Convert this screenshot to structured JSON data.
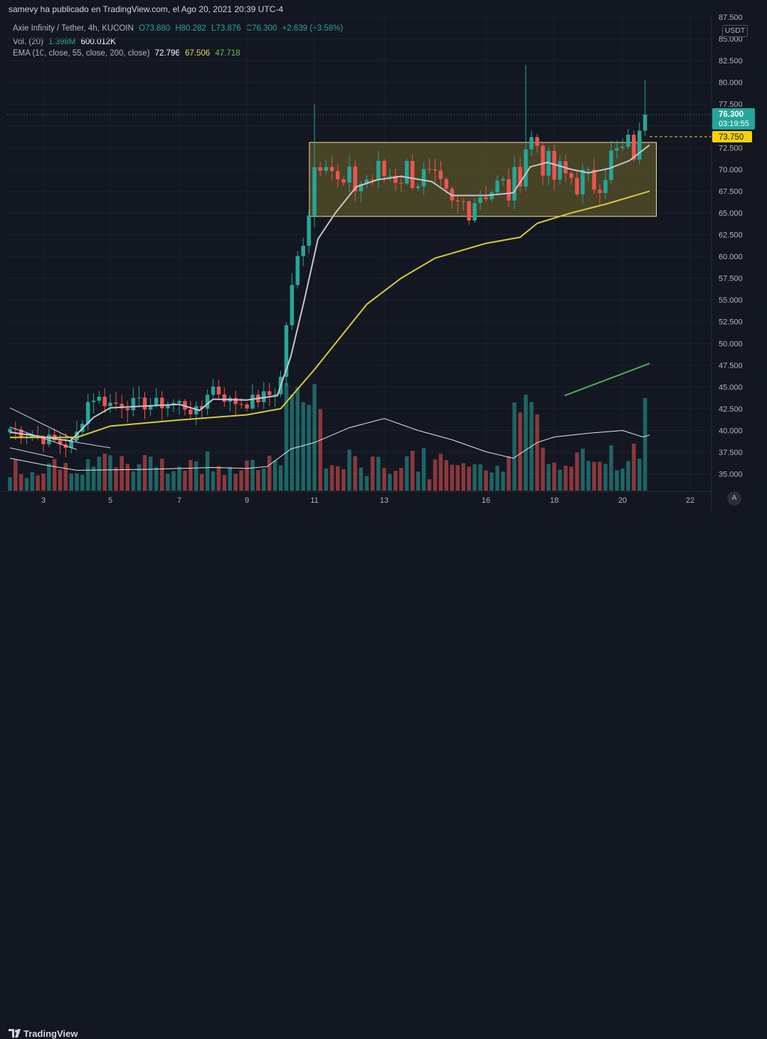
{
  "header": {
    "published_by": "samevy ha publicado en TradingView.com, el Ago 20, 2021 20:39 UTC-4"
  },
  "legend": {
    "symbol": "Axie Infinity / Tether, 4h, KUCOIN",
    "open": "O73.880",
    "high": "H80.282",
    "low": "L73.876",
    "close": "C76.300",
    "change": "+2.639 (+3.58%)",
    "vol_label": "Vol. (20)",
    "vol_value": "1.398M",
    "vol_ma": "600.012K",
    "ema_label": "EMA (10, close, 55, close, 200, close)",
    "ema10": "72.796",
    "ema55": "67.506",
    "ema200": "47.718"
  },
  "currency": "USDT",
  "footer": {
    "logo": "TradingView",
    "auto": "A"
  },
  "colors": {
    "up": "#26a69a",
    "down": "#ef5350",
    "ema10": "#c7c7cc",
    "ema55": "#d8c93a",
    "ema200": "#4caf50",
    "box": "#5a5428"
  },
  "chart_data": {
    "type": "candlestick",
    "title": "Axie Infinity / Tether, 4h, KUCOIN",
    "ylim": [
      33.0,
      87.5
    ],
    "y_ticks": [
      "35.000",
      "37.500",
      "40.000",
      "42.500",
      "45.000",
      "47.500",
      "50.000",
      "52.500",
      "55.000",
      "57.500",
      "60.000",
      "62.500",
      "65.000",
      "67.500",
      "70.000",
      "72.500",
      "75.000",
      "77.500",
      "80.000",
      "82.500",
      "85.000",
      "87.500"
    ],
    "x_ticks": [
      {
        "label": "3",
        "day": 3
      },
      {
        "label": "5",
        "day": 5
      },
      {
        "label": "7",
        "day": 7
      },
      {
        "label": "9",
        "day": 9
      },
      {
        "label": "11",
        "day": 11
      },
      {
        "label": "13",
        "day": 13
      },
      {
        "label": "16",
        "day": 16
      },
      {
        "label": "18",
        "day": 18
      },
      {
        "label": "20",
        "day": 20
      },
      {
        "label": "22",
        "day": 22
      }
    ],
    "last_price": {
      "value": 76.3,
      "label": "76.300",
      "countdown": "03:19:55"
    },
    "horizontal_line": {
      "value": 73.75,
      "label": "73.750"
    },
    "consolidation_box": {
      "from_day": 10.85,
      "to_day": 21.0,
      "top": 73.1,
      "bottom": 64.6
    },
    "anchor_points": [
      {
        "day": 2.0,
        "close": 40.2
      },
      {
        "day": 3.8,
        "close": 38.2
      },
      {
        "day": 4.0,
        "close": 39.6
      },
      {
        "day": 4.4,
        "close": 44.0
      },
      {
        "day": 5.0,
        "close": 43.1
      },
      {
        "day": 6.0,
        "close": 43.0
      },
      {
        "day": 7.0,
        "close": 43.1
      },
      {
        "day": 7.6,
        "close": 41.8
      },
      {
        "day": 7.9,
        "close": 45.3
      },
      {
        "day": 8.5,
        "close": 43.3
      },
      {
        "day": 9.0,
        "close": 43.2
      },
      {
        "day": 9.8,
        "close": 44.3
      },
      {
        "day": 10.0,
        "close": 46.0
      },
      {
        "day": 10.2,
        "close": 53.5
      },
      {
        "day": 10.5,
        "close": 59.8
      },
      {
        "day": 10.7,
        "close": 62.2
      },
      {
        "day": 10.85,
        "close": 65.5
      },
      {
        "day": 11.0,
        "close": 70.5
      },
      {
        "day": 11.3,
        "close": 73.0
      },
      {
        "day": 11.7,
        "close": 67.5
      },
      {
        "day": 12.3,
        "close": 68.6
      },
      {
        "day": 13.0,
        "close": 69.5
      },
      {
        "day": 13.8,
        "close": 69.8
      },
      {
        "day": 14.4,
        "close": 68.0
      },
      {
        "day": 15.0,
        "close": 65.2
      },
      {
        "day": 15.4,
        "close": 66.2
      },
      {
        "day": 16.0,
        "close": 68.0
      },
      {
        "day": 16.8,
        "close": 67.5
      },
      {
        "day": 17.2,
        "close": 73.5
      },
      {
        "day": 17.5,
        "close": 73.0
      },
      {
        "day": 17.9,
        "close": 69.0
      },
      {
        "day": 18.6,
        "close": 69.2
      },
      {
        "day": 19.0,
        "close": 68.0
      },
      {
        "day": 19.6,
        "close": 71.0
      },
      {
        "day": 20.1,
        "close": 72.0
      },
      {
        "day": 20.6,
        "close": 73.0
      },
      {
        "day": 20.8,
        "close": 76.3
      }
    ],
    "ema10_points": [
      {
        "day": 2.0,
        "v": 39.8
      },
      {
        "day": 3.8,
        "v": 38.8
      },
      {
        "day": 4.5,
        "v": 41.5
      },
      {
        "day": 5.0,
        "v": 42.6
      },
      {
        "day": 7.0,
        "v": 43.0
      },
      {
        "day": 7.6,
        "v": 42.3
      },
      {
        "day": 8.0,
        "v": 43.6
      },
      {
        "day": 9.0,
        "v": 43.5
      },
      {
        "day": 9.9,
        "v": 44.0
      },
      {
        "day": 10.3,
        "v": 48.5
      },
      {
        "day": 10.7,
        "v": 55.0
      },
      {
        "day": 11.1,
        "v": 62.0
      },
      {
        "day": 11.6,
        "v": 65.0
      },
      {
        "day": 12.2,
        "v": 68.0
      },
      {
        "day": 12.8,
        "v": 68.8
      },
      {
        "day": 13.5,
        "v": 69.2
      },
      {
        "day": 14.4,
        "v": 68.6
      },
      {
        "day": 15.0,
        "v": 67.0
      },
      {
        "day": 16.0,
        "v": 67.0
      },
      {
        "day": 16.8,
        "v": 67.3
      },
      {
        "day": 17.3,
        "v": 70.3
      },
      {
        "day": 17.8,
        "v": 70.8
      },
      {
        "day": 18.5,
        "v": 70.0
      },
      {
        "day": 19.0,
        "v": 69.6
      },
      {
        "day": 19.6,
        "v": 70.1
      },
      {
        "day": 20.2,
        "v": 71.0
      },
      {
        "day": 20.8,
        "v": 72.8
      }
    ],
    "ema55_points": [
      {
        "day": 2.0,
        "v": 39.2
      },
      {
        "day": 4.0,
        "v": 39.2
      },
      {
        "day": 5.0,
        "v": 40.5
      },
      {
        "day": 7.0,
        "v": 41.2
      },
      {
        "day": 9.0,
        "v": 41.8
      },
      {
        "day": 10.0,
        "v": 42.5
      },
      {
        "day": 11.0,
        "v": 47.0
      },
      {
        "day": 12.5,
        "v": 54.5
      },
      {
        "day": 13.5,
        "v": 57.5
      },
      {
        "day": 14.5,
        "v": 59.8
      },
      {
        "day": 16.0,
        "v": 61.5
      },
      {
        "day": 17.0,
        "v": 62.2
      },
      {
        "day": 17.5,
        "v": 63.8
      },
      {
        "day": 18.5,
        "v": 65.0
      },
      {
        "day": 19.5,
        "v": 66.0
      },
      {
        "day": 20.8,
        "v": 67.5
      }
    ],
    "ema200_points": [
      {
        "day": 18.3,
        "v": 44.0
      },
      {
        "day": 20.8,
        "v": 47.7
      }
    ],
    "trend_lines": [
      {
        "from": {
          "day": 2.0,
          "v": 42.6
        },
        "to": {
          "day": 4.0,
          "v": 38.8
        }
      },
      {
        "from": {
          "day": 2.0,
          "v": 40.4
        },
        "to": {
          "day": 4.0,
          "v": 37.8
        }
      },
      {
        "from": {
          "day": 2.5,
          "v": 39.6
        },
        "to": {
          "day": 5.0,
          "v": 38.0
        }
      },
      {
        "from": {
          "day": 2.0,
          "v": 38.0
        },
        "to": {
          "day": 3.3,
          "v": 36.9
        }
      }
    ],
    "volume_ma": [
      {
        "day": 2.0,
        "v": 0.35
      },
      {
        "day": 3.0,
        "v": 0.28
      },
      {
        "day": 4.0,
        "v": 0.22
      },
      {
        "day": 6.0,
        "v": 0.23
      },
      {
        "day": 8.0,
        "v": 0.25
      },
      {
        "day": 9.0,
        "v": 0.24
      },
      {
        "day": 9.6,
        "v": 0.26
      },
      {
        "day": 10.3,
        "v": 0.45
      },
      {
        "day": 11.0,
        "v": 0.52
      },
      {
        "day": 12.0,
        "v": 0.68
      },
      {
        "day": 13.0,
        "v": 0.78
      },
      {
        "day": 14.0,
        "v": 0.65
      },
      {
        "day": 15.0,
        "v": 0.55
      },
      {
        "day": 16.0,
        "v": 0.42
      },
      {
        "day": 16.8,
        "v": 0.35
      },
      {
        "day": 17.5,
        "v": 0.52
      },
      {
        "day": 18.0,
        "v": 0.58
      },
      {
        "day": 19.0,
        "v": 0.62
      },
      {
        "day": 20.0,
        "v": 0.65
      },
      {
        "day": 20.6,
        "v": 0.58
      },
      {
        "day": 20.8,
        "v": 0.6
      }
    ]
  }
}
